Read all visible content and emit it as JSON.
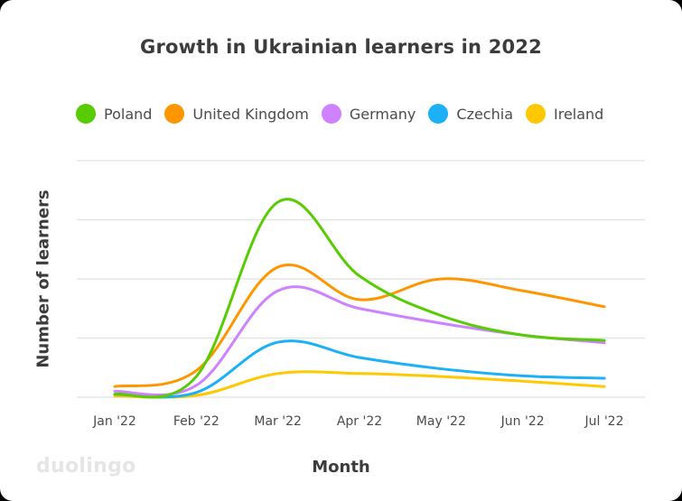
{
  "logo_text": "duolingo",
  "chart_data": {
    "type": "line",
    "title": "Growth in Ukrainian learners in 2022",
    "xlabel": "Month",
    "ylabel": "Number of learners",
    "categories": [
      "Jan '22",
      "Feb '22",
      "Mar '22",
      "Apr '22",
      "May '22",
      "Jun '22",
      "Jul '22"
    ],
    "ylim": [
      0,
      4
    ],
    "grid": true,
    "legend_position": "top",
    "series": [
      {
        "name": "Poland",
        "color": "#58cc02",
        "values": [
          0.05,
          0.35,
          3.3,
          2.05,
          1.38,
          1.05,
          0.96
        ]
      },
      {
        "name": "United Kingdom",
        "color": "#ff9600",
        "values": [
          0.18,
          0.45,
          2.2,
          1.65,
          2.0,
          1.8,
          1.53
        ]
      },
      {
        "name": "Germany",
        "color": "#ce82ff",
        "values": [
          0.1,
          0.2,
          1.8,
          1.5,
          1.25,
          1.05,
          0.92
        ]
      },
      {
        "name": "Czechia",
        "color": "#1cb0f6",
        "values": [
          0.05,
          0.08,
          0.93,
          0.67,
          0.48,
          0.36,
          0.32
        ]
      },
      {
        "name": "Ireland",
        "color": "#ffc800",
        "values": [
          0.02,
          0.03,
          0.4,
          0.4,
          0.35,
          0.27,
          0.18
        ]
      }
    ]
  }
}
